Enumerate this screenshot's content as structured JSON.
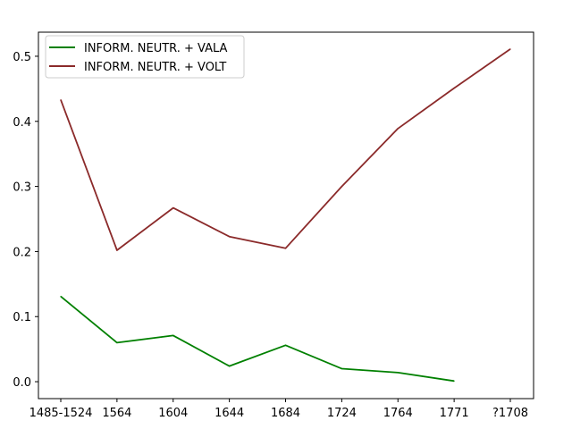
{
  "chart_data": {
    "type": "line",
    "title": "",
    "xlabel": "",
    "ylabel": "",
    "categories": [
      "1485-1524",
      "1564",
      "1604",
      "1644",
      "1684",
      "1724",
      "1764",
      "1771",
      "?1708"
    ],
    "series": [
      {
        "name": "INFORM. NEUTR. + VALA",
        "color": "#008000",
        "values": [
          0.131,
          0.06,
          0.071,
          0.024,
          0.056,
          0.02,
          0.014,
          0.001,
          null
        ]
      },
      {
        "name": "INFORM. NEUTR. + VOLT",
        "color": "#8b2a2a",
        "values": [
          0.433,
          0.202,
          0.267,
          0.223,
          0.205,
          0.3,
          0.389,
          0.451,
          0.511
        ]
      }
    ],
    "yticks": [
      0.0,
      0.1,
      0.2,
      0.3,
      0.4,
      0.5
    ],
    "ylim": [
      -0.026,
      0.537
    ],
    "grid": false,
    "legend_position": "top-left"
  }
}
